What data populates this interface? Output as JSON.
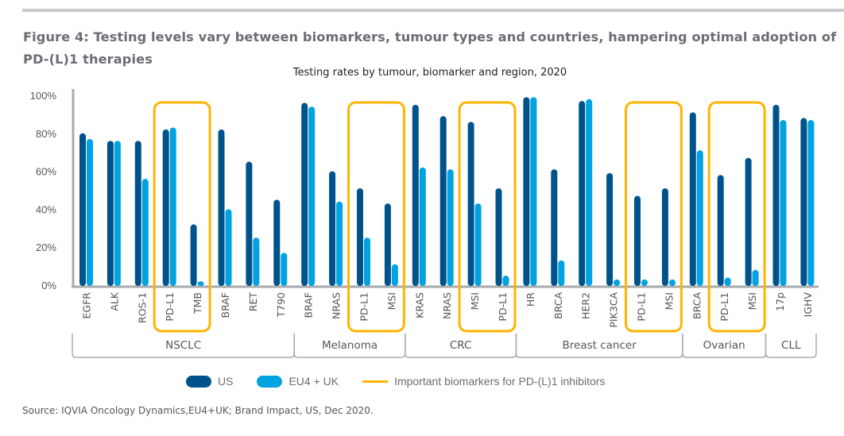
{
  "figure": {
    "title": "Figure 4: Testing levels vary between biomarkers, tumour types and countries, hampering optimal adoption of PD-(L)1 therapies",
    "source": "Source:  IQVIA Oncology Dynamics,EU4+UK; Brand Impact, US,  Dec 2020."
  },
  "colors": {
    "us": "#00538a",
    "eu": "#00a3e0",
    "highlight": "#ffb400",
    "axis": "#a7abae",
    "text": "#555555"
  },
  "legend": {
    "us_label": "US",
    "eu_label": "EU4 + UK",
    "highlight_label": "Important biomarkers for PD-(L)1 inhibitors"
  },
  "chart_data": {
    "type": "bar",
    "title": "Testing rates by tumour, biomarker and region, 2020",
    "xlabel": "",
    "ylabel": "",
    "ylim": [
      0,
      100
    ],
    "yticks": [
      "0%",
      "20%",
      "40%",
      "60%",
      "80%",
      "100%"
    ],
    "ytick_values": [
      0,
      20,
      40,
      60,
      80,
      100
    ],
    "grid": false,
    "legend_position": "bottom",
    "categories": [
      "EGFR",
      "ALK",
      "ROS-1",
      "PD-L1",
      "TMB",
      "BRAF",
      "RET",
      "T790",
      "BRAF",
      "NRAS",
      "PD-L1",
      "MSI",
      "KRAS",
      "NRAS",
      "MSI",
      "PD-L1",
      "HR",
      "BRCA",
      "HER2",
      "PIK3CA",
      "PD-L1",
      "MSI",
      "BRCA",
      "PD-L1",
      "MSI",
      "17p",
      "IGHV"
    ],
    "groups": [
      {
        "name": "NSCLC",
        "start": 0,
        "end": 7
      },
      {
        "name": "Melanoma",
        "start": 8,
        "end": 11
      },
      {
        "name": "CRC",
        "start": 12,
        "end": 15
      },
      {
        "name": "Breast cancer",
        "start": 16,
        "end": 21
      },
      {
        "name": "Ovarian",
        "start": 22,
        "end": 24
      },
      {
        "name": "CLL",
        "start": 25,
        "end": 26
      }
    ],
    "highlight_ranges": [
      [
        3,
        4
      ],
      [
        10,
        11
      ],
      [
        14,
        15
      ],
      [
        20,
        21
      ],
      [
        23,
        24
      ]
    ],
    "series": [
      {
        "name": "US",
        "values": [
          80,
          76,
          76,
          82,
          32,
          82,
          65,
          45,
          96,
          60,
          51,
          43,
          95,
          89,
          86,
          51,
          99,
          61,
          97,
          59,
          47,
          51,
          91,
          58,
          67,
          95,
          88
        ]
      },
      {
        "name": "EU4 + UK",
        "values": [
          77,
          76,
          56,
          83,
          2,
          40,
          25,
          17,
          94,
          44,
          25,
          11,
          62,
          61,
          43,
          5,
          99,
          13,
          98,
          3,
          3,
          3,
          71,
          4,
          8,
          87,
          87
        ]
      }
    ]
  }
}
